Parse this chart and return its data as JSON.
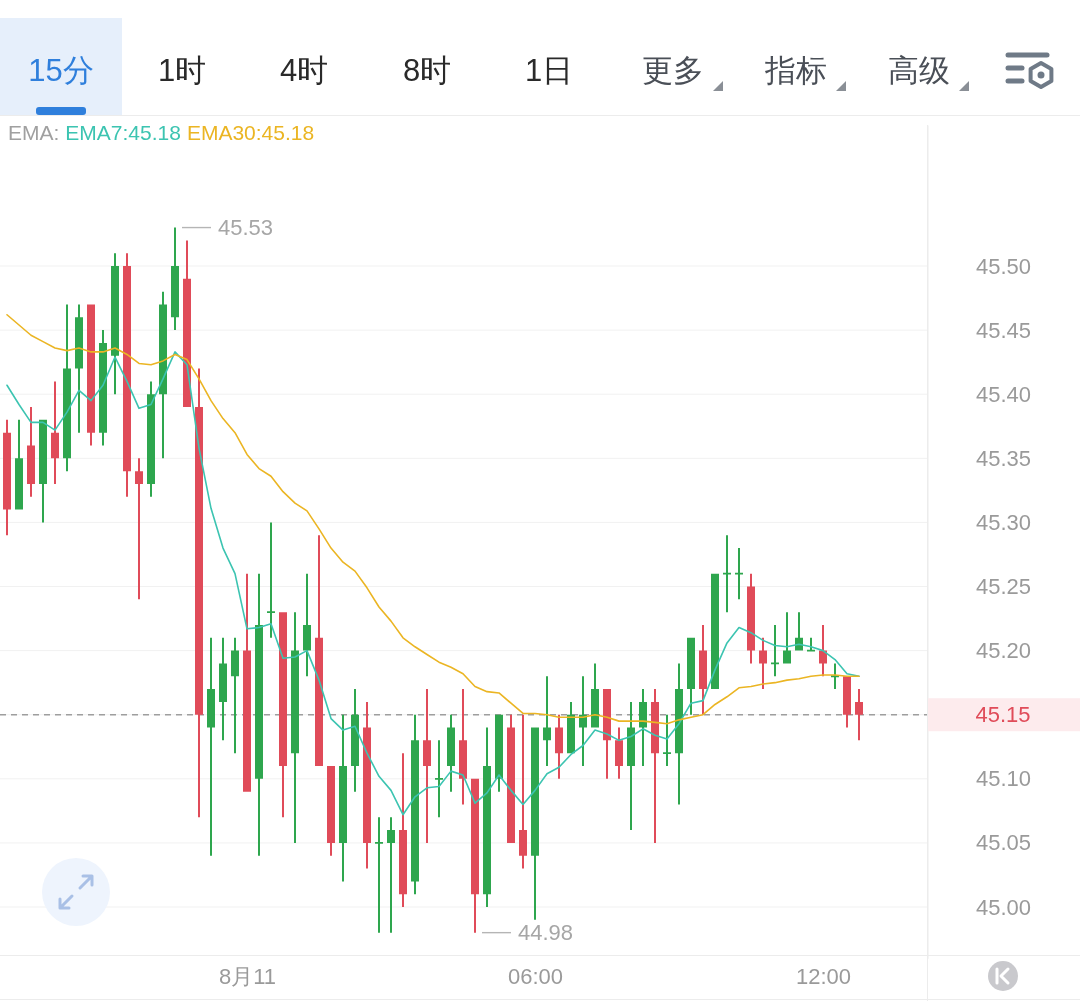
{
  "chart_data": {
    "type": "candlestick",
    "categories": [
      null,
      null,
      null,
      null,
      null,
      null,
      null,
      null,
      null,
      null,
      null,
      null,
      null,
      null,
      null,
      null,
      null,
      null,
      null,
      null,
      "8月11",
      null,
      null,
      null,
      null,
      null,
      null,
      null,
      null,
      null,
      null,
      null,
      null,
      null,
      null,
      null,
      null,
      null,
      null,
      null,
      null,
      null,
      null,
      null,
      "06:00",
      null,
      null,
      null,
      null,
      null,
      null,
      null,
      null,
      null,
      null,
      null,
      null,
      null,
      null,
      null,
      null,
      null,
      null,
      null,
      null,
      null,
      null,
      null,
      "12:00",
      null,
      null,
      null
    ],
    "ohlc": [
      [
        45.37,
        45.38,
        45.29,
        45.31
      ],
      [
        45.31,
        45.38,
        45.31,
        45.35
      ],
      [
        45.36,
        45.39,
        45.32,
        45.33
      ],
      [
        45.33,
        45.38,
        45.3,
        45.38
      ],
      [
        45.37,
        45.41,
        45.33,
        45.35
      ],
      [
        45.35,
        45.47,
        45.34,
        45.42
      ],
      [
        45.42,
        45.47,
        45.37,
        45.46
      ],
      [
        45.47,
        45.47,
        45.36,
        45.37
      ],
      [
        45.37,
        45.45,
        45.36,
        45.44
      ],
      [
        45.43,
        45.51,
        45.4,
        45.5
      ],
      [
        45.5,
        45.51,
        45.32,
        45.34
      ],
      [
        45.34,
        45.35,
        45.24,
        45.33
      ],
      [
        45.33,
        45.41,
        45.32,
        45.4
      ],
      [
        45.4,
        45.48,
        45.35,
        45.47
      ],
      [
        45.46,
        45.53,
        45.45,
        45.5
      ],
      [
        45.49,
        45.52,
        45.39,
        45.39
      ],
      [
        45.39,
        45.42,
        45.07,
        45.15
      ],
      [
        45.14,
        45.21,
        45.04,
        45.17
      ],
      [
        45.16,
        45.21,
        45.13,
        45.19
      ],
      [
        45.18,
        45.21,
        45.12,
        45.2
      ],
      [
        45.2,
        45.26,
        45.09,
        45.09
      ],
      [
        45.1,
        45.26,
        45.04,
        45.22
      ],
      [
        45.23,
        45.3,
        45.21,
        45.23
      ],
      [
        45.23,
        45.23,
        45.07,
        45.11
      ],
      [
        45.12,
        45.23,
        45.05,
        45.2
      ],
      [
        45.2,
        45.26,
        45.18,
        45.22
      ],
      [
        45.21,
        45.29,
        45.11,
        45.11
      ],
      [
        45.11,
        45.11,
        45.04,
        45.05
      ],
      [
        45.05,
        45.15,
        45.02,
        45.11
      ],
      [
        45.11,
        45.17,
        45.09,
        45.15
      ],
      [
        45.14,
        45.16,
        45.03,
        45.05
      ],
      [
        45.05,
        45.07,
        44.98,
        45.05
      ],
      [
        45.05,
        45.07,
        44.98,
        45.06
      ],
      [
        45.06,
        45.12,
        45.0,
        45.01
      ],
      [
        45.02,
        45.15,
        45.01,
        45.13
      ],
      [
        45.13,
        45.17,
        45.05,
        45.11
      ],
      [
        45.1,
        45.13,
        45.07,
        45.1
      ],
      [
        45.11,
        45.15,
        45.09,
        45.14
      ],
      [
        45.13,
        45.17,
        45.08,
        45.1
      ],
      [
        45.1,
        45.1,
        44.98,
        45.01
      ],
      [
        45.01,
        45.14,
        45.0,
        45.11
      ],
      [
        45.1,
        45.15,
        45.09,
        45.15
      ],
      [
        45.14,
        45.15,
        45.05,
        45.05
      ],
      [
        45.06,
        45.15,
        45.03,
        45.04
      ],
      [
        45.04,
        45.14,
        44.99,
        45.14
      ],
      [
        45.13,
        45.18,
        45.11,
        45.14
      ],
      [
        45.14,
        45.15,
        45.1,
        45.12
      ],
      [
        45.12,
        45.16,
        45.12,
        45.15
      ],
      [
        45.14,
        45.18,
        45.11,
        45.15
      ],
      [
        45.14,
        45.19,
        45.14,
        45.17
      ],
      [
        45.17,
        45.17,
        45.1,
        45.13
      ],
      [
        45.13,
        45.14,
        45.1,
        45.11
      ],
      [
        45.11,
        45.16,
        45.06,
        45.14
      ],
      [
        45.14,
        45.17,
        45.11,
        45.16
      ],
      [
        45.16,
        45.17,
        45.05,
        45.12
      ],
      [
        45.12,
        45.15,
        45.11,
        45.12
      ],
      [
        45.12,
        45.19,
        45.08,
        45.17
      ],
      [
        45.17,
        45.21,
        45.15,
        45.21
      ],
      [
        45.2,
        45.22,
        45.15,
        45.17
      ],
      [
        45.17,
        45.26,
        45.17,
        45.26
      ],
      [
        45.26,
        45.29,
        45.23,
        45.26
      ],
      [
        45.26,
        45.28,
        45.24,
        45.26
      ],
      [
        45.25,
        45.26,
        45.19,
        45.2
      ],
      [
        45.2,
        45.21,
        45.17,
        45.19
      ],
      [
        45.19,
        45.22,
        45.18,
        45.19
      ],
      [
        45.19,
        45.23,
        45.19,
        45.2
      ],
      [
        45.2,
        45.23,
        45.2,
        45.21
      ],
      [
        45.2,
        45.21,
        45.2,
        45.2
      ],
      [
        45.2,
        45.22,
        45.18,
        45.19
      ],
      [
        45.18,
        45.19,
        45.17,
        45.18
      ],
      [
        45.18,
        45.18,
        45.14,
        45.15
      ],
      [
        45.16,
        45.17,
        45.13,
        45.15
      ]
    ],
    "colors": [
      "#e04b59",
      "#2ea64e",
      "#e04b59",
      "#2ea64e",
      "#e04b59",
      "#2ea64e",
      "#2ea64e",
      "#e04b59",
      "#2ea64e",
      "#2ea64e",
      "#e04b59",
      "#e04b59",
      "#2ea64e",
      "#2ea64e",
      "#2ea64e",
      "#e04b59",
      "#e04b59",
      "#2ea64e",
      "#2ea64e",
      "#2ea64e",
      "#e04b59",
      "#2ea64e",
      "#2ea64e",
      "#e04b59",
      "#2ea64e",
      "#2ea64e",
      "#e04b59",
      "#e04b59",
      "#2ea64e",
      "#2ea64e",
      "#e04b59",
      "#2ea64e",
      "#2ea64e",
      "#e04b59",
      "#2ea64e",
      "#e04b59",
      "#2ea64e",
      "#2ea64e",
      "#e04b59",
      "#e04b59",
      "#2ea64e",
      "#2ea64e",
      "#e04b59",
      "#e04b59",
      "#2ea64e",
      "#2ea64e",
      "#e04b59",
      "#2ea64e",
      "#2ea64e",
      "#2ea64e",
      "#e04b59",
      "#e04b59",
      "#2ea64e",
      "#2ea64e",
      "#e04b59",
      "#2ea64e",
      "#2ea64e",
      "#2ea64e",
      "#e04b59",
      "#2ea64e",
      "#2ea64e",
      "#2ea64e",
      "#e04b59",
      "#e04b59",
      "#2ea64e",
      "#2ea64e",
      "#2ea64e",
      "#2ea64e",
      "#e04b59",
      "#2ea64e",
      "#e04b59",
      "#e04b59"
    ],
    "series": [
      {
        "name": "EMA7:45.18",
        "type": "line",
        "color": "#3cc4b1",
        "values": [
          45.407,
          45.392,
          45.378,
          45.378,
          45.372,
          45.386,
          45.403,
          45.395,
          45.407,
          45.429,
          45.41,
          45.389,
          45.392,
          45.412,
          45.433,
          45.423,
          45.358,
          45.311,
          45.28,
          45.26,
          45.217,
          45.218,
          45.221,
          45.194,
          45.195,
          45.2,
          45.177,
          45.147,
          45.138,
          45.141,
          45.12,
          45.102,
          45.091,
          45.072,
          45.086,
          45.093,
          45.094,
          45.106,
          45.103,
          45.081,
          45.089,
          45.103,
          45.091,
          45.08,
          45.091,
          45.104,
          45.109,
          45.119,
          45.126,
          45.138,
          45.135,
          45.13,
          45.133,
          45.139,
          45.134,
          45.131,
          45.143,
          45.159,
          45.161,
          45.185,
          45.206,
          45.218,
          45.214,
          45.208,
          45.204,
          45.203,
          45.205,
          45.203,
          45.2,
          45.193,
          45.182,
          45.18
        ]
      },
      {
        "name": "EMA30:45.18",
        "type": "line",
        "color": "#ebb523",
        "values": [
          45.462,
          45.454,
          45.446,
          45.441,
          45.436,
          45.434,
          45.436,
          45.433,
          45.433,
          45.436,
          45.431,
          45.424,
          45.423,
          45.426,
          45.431,
          45.427,
          45.412,
          45.395,
          45.381,
          45.37,
          45.353,
          45.342,
          45.336,
          45.324,
          45.315,
          45.309,
          45.295,
          45.28,
          45.269,
          45.262,
          45.249,
          45.234,
          45.223,
          45.21,
          45.203,
          45.197,
          45.191,
          45.187,
          45.182,
          45.172,
          45.168,
          45.167,
          45.159,
          45.151,
          45.151,
          45.15,
          45.148,
          45.148,
          45.148,
          45.15,
          45.148,
          45.145,
          45.145,
          45.145,
          45.144,
          45.143,
          45.146,
          45.148,
          45.15,
          45.158,
          45.164,
          45.171,
          45.172,
          45.174,
          45.175,
          45.177,
          45.178,
          45.18,
          45.181,
          45.181,
          45.18,
          45.18
        ]
      }
    ],
    "legend_title": "EMA:",
    "ylim": [
      44.96,
      45.61
    ],
    "yticks": [
      {
        "value": 45.0,
        "label": "45.00"
      },
      {
        "value": 45.05,
        "label": "45.05"
      },
      {
        "value": 45.1,
        "label": "45.10"
      },
      {
        "value": 45.15,
        "label": null
      },
      {
        "value": 45.2,
        "label": "45.20"
      },
      {
        "value": 45.25,
        "label": "45.25"
      },
      {
        "value": 45.3,
        "label": "45.30"
      },
      {
        "value": 45.35,
        "label": "45.35"
      },
      {
        "value": 45.4,
        "label": "45.40"
      },
      {
        "value": 45.45,
        "label": "45.45"
      },
      {
        "value": 45.5,
        "label": "45.50"
      }
    ],
    "grid": "y",
    "ref_lines": [
      {
        "axis": "y",
        "value": 45.15,
        "label": "45.15",
        "color": "#9e9e9e",
        "line_style": "dashed"
      }
    ],
    "annotations": [
      "15分",
      "1时",
      "4时",
      "8时",
      "1日",
      "更多",
      "指标",
      "高级",
      "45.53",
      "44.98"
    ]
  }
}
